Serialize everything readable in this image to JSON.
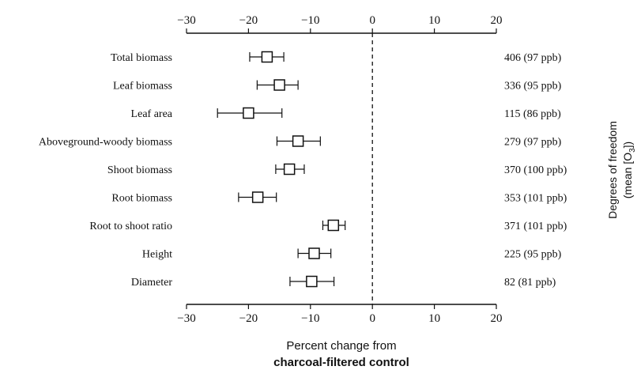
{
  "chart_data": {
    "type": "forest",
    "xlabel_line1": "Percent change from",
    "xlabel_line2": "charcoal-filtered control",
    "right_axis_label": "Degrees of freedom",
    "right_axis_label_line2_prefix": "(mean [O",
    "right_axis_label_line2_sub": "3",
    "right_axis_label_line2_suffix": "])",
    "xlim": [
      -30,
      20
    ],
    "ticks": [
      -30,
      -20,
      -10,
      0,
      10,
      20
    ],
    "tick_labels": [
      "−30",
      "−20",
      "−10",
      "0",
      "10",
      "20"
    ],
    "reference_line": 0,
    "rows": [
      {
        "label": "Total biomass",
        "mean": -17,
        "low": -19.8,
        "high": -14.3,
        "df_text": "406 (97 ppb)"
      },
      {
        "label": "Leaf biomass",
        "mean": -15,
        "low": -18.6,
        "high": -12,
        "df_text": "336 (95 ppb)"
      },
      {
        "label": "Leaf area",
        "mean": -20,
        "low": -25,
        "high": -14.6,
        "df_text": "115 (86 ppb)"
      },
      {
        "label": "Aboveground-woody biomass",
        "mean": -12,
        "low": -15.4,
        "high": -8.4,
        "df_text": "279 (97 ppb)"
      },
      {
        "label": "Shoot biomass",
        "mean": -13.4,
        "low": -15.6,
        "high": -11,
        "df_text": "370 (100 ppb)"
      },
      {
        "label": "Root biomass",
        "mean": -18.5,
        "low": -21.6,
        "high": -15.5,
        "df_text": "353 (101 ppb)"
      },
      {
        "label": "Root to shoot ratio",
        "mean": -6.3,
        "low": -8,
        "high": -4.4,
        "df_text": "371 (101 ppb)"
      },
      {
        "label": "Height",
        "mean": -9.4,
        "low": -12,
        "high": -6.7,
        "df_text": "225 (95 ppb)"
      },
      {
        "label": "Diameter",
        "mean": -9.8,
        "low": -13.3,
        "high": -6.2,
        "df_text": "82 (81 ppb)"
      }
    ]
  }
}
